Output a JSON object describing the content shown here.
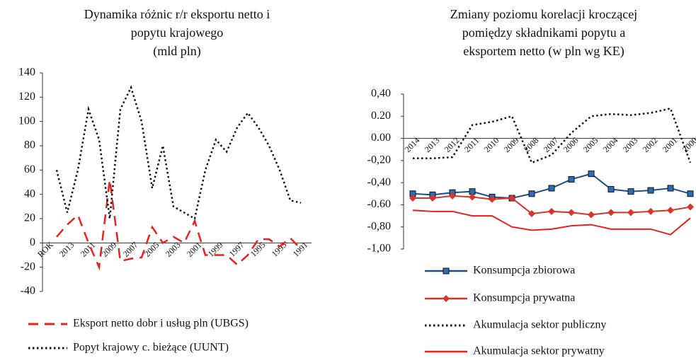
{
  "chart_data": [
    {
      "type": "line",
      "title": [
        "Dynamika różnic r/r eksportu netto i",
        "popytu krajowego",
        "(mld pln)"
      ],
      "categories": [
        "ROK",
        null,
        "2013",
        null,
        "2011",
        null,
        "2009",
        null,
        "2007",
        null,
        "2005",
        null,
        "2003",
        null,
        "2001",
        null,
        "1999",
        null,
        "1997",
        null,
        "1995",
        null,
        "1993",
        null,
        "1991"
      ],
      "series": [
        {
          "name": "Eksport netto dobr i usług pln  (UBGS)",
          "color": "#e8231f",
          "style": "dashed",
          "values": [
            null,
            5,
            15,
            23,
            0,
            -20,
            52,
            -15,
            -13,
            -12,
            13,
            0,
            5,
            0,
            18,
            -10,
            -10,
            -10,
            -18,
            -10,
            3,
            3,
            -3,
            4,
            -5
          ]
        },
        {
          "name": "Popyt krajowy c. bieżące (UUNT)",
          "color": "#111111",
          "style": "dotted",
          "values": [
            null,
            60,
            25,
            60,
            110,
            85,
            20,
            110,
            128,
            100,
            45,
            80,
            30,
            25,
            20,
            60,
            85,
            75,
            95,
            107,
            95,
            80,
            60,
            35,
            33
          ]
        }
      ],
      "ylim": [
        -40,
        140
      ],
      "yticks": [
        -40,
        -20,
        0,
        20,
        40,
        60,
        80,
        100,
        120,
        140
      ]
    },
    {
      "type": "line",
      "title": [
        "Zmiany poziomu korelacji kroczącej",
        "pomiędzy składnikami popytu a",
        "eksportem netto  (w pln wg KE)"
      ],
      "categories": [
        "2014",
        "2013",
        "2012",
        "2011",
        "2010",
        "2009",
        "2008",
        "2007",
        "2006",
        "2005",
        "2004",
        "2003",
        "2002",
        "2001",
        "2000"
      ],
      "series": [
        {
          "name": "Konsumpcja zbiorowa",
          "color": "#1f4f8a",
          "style": "solid",
          "marker": "square",
          "values": [
            -0.5,
            -0.51,
            -0.49,
            -0.48,
            -0.53,
            -0.54,
            -0.5,
            -0.45,
            -0.37,
            -0.32,
            -0.46,
            -0.48,
            -0.47,
            -0.45,
            -0.5
          ]
        },
        {
          "name": "Konsumpcja prywatna",
          "color": "#d9342b",
          "style": "solid",
          "marker": "diamond",
          "values": [
            -0.54,
            -0.54,
            -0.52,
            -0.53,
            -0.55,
            -0.54,
            -0.68,
            -0.66,
            -0.67,
            -0.69,
            -0.67,
            -0.67,
            -0.66,
            -0.65,
            -0.62
          ]
        },
        {
          "name": "Akumulacja sektor publiczny",
          "color": "#111111",
          "style": "dotted",
          "values": [
            -0.18,
            -0.18,
            -0.17,
            0.12,
            0.15,
            0.2,
            -0.22,
            -0.15,
            0.05,
            0.2,
            0.22,
            0.21,
            0.23,
            0.27,
            -0.22
          ]
        },
        {
          "name": "Akumulacja sektor prywatny",
          "color": "#e8231f",
          "style": "solid",
          "values": [
            -0.65,
            -0.66,
            -0.66,
            -0.7,
            -0.7,
            -0.8,
            -0.83,
            -0.82,
            -0.79,
            -0.78,
            -0.82,
            -0.82,
            -0.82,
            -0.87,
            -0.72
          ]
        }
      ],
      "ylim": [
        -1.0,
        0.4
      ],
      "yticks": [
        {
          "value": -1.0,
          "label": "-1,00"
        },
        {
          "value": -0.8,
          "label": "-0,80"
        },
        {
          "value": -0.6,
          "label": "-0.60"
        },
        {
          "value": -0.4,
          "label": "-0,40"
        },
        {
          "value": -0.2,
          "label": "-0,20"
        },
        {
          "value": 0,
          "label": "0.00"
        },
        {
          "value": 0.2,
          "label": "0.20"
        },
        {
          "value": 0.4,
          "label": "0,40"
        }
      ]
    }
  ]
}
